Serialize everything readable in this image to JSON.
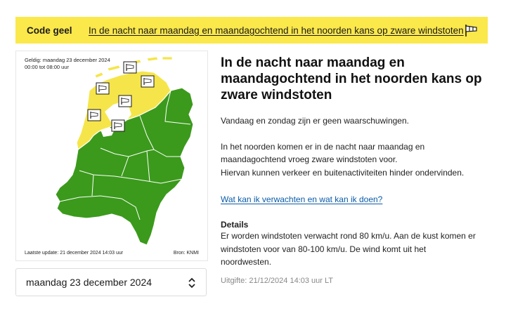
{
  "banner": {
    "code_label": "Code geel",
    "headline": "In de nacht naar maandag en maandagochtend in het noorden kans op zware windstoten",
    "icon": "windsock-flag-icon"
  },
  "map": {
    "valid_line1": "Geldig: maandag 23 december 2024",
    "valid_line2": "00:00 tot 08:00 uur",
    "last_update": "Laatste update: 21 december 2024 14:03 uur",
    "source": "Bron: KNMI",
    "warning_icon": "windsock-icon",
    "colors": {
      "yellow": "#f6e54a",
      "green": "#3b9a1c",
      "border": "#ffffff"
    }
  },
  "date_select": {
    "value": "maandag 23 december 2024",
    "icon": "updown-chevron-icon"
  },
  "content": {
    "title": "In de nacht naar maandag en maandagochtend in het noorden kans op zware windstoten",
    "intro": "Vandaag en zondag zijn er geen waarschuwingen.",
    "para_line1": "In het noorden komen er in de nacht naar maandag en",
    "para_line2": "maandagochtend vroeg zware windstoten voor.",
    "para_line3": "Hiervan kunnen verkeer en buitenactiviteiten hinder ondervinden.",
    "link": "Wat kan ik verwachten en wat kan ik doen?",
    "details_heading": "Details",
    "details_line1": "Er worden windstoten verwacht rond 80 km/u. Aan de kust komen er",
    "details_line2": "windstoten voor van 80-100 km/u. De wind komt uit het",
    "details_line3": "noordwesten.",
    "issued": "Uitgifte: 21/12/2024 14:03 uur LT"
  },
  "colors": {
    "banner": "#fbe84a",
    "link": "#0a5ba8"
  }
}
